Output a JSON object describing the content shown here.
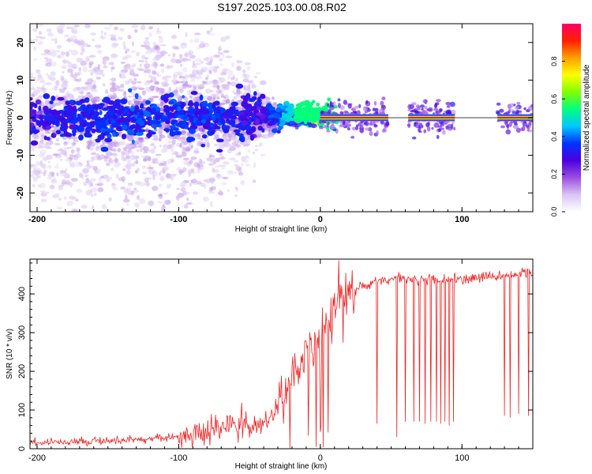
{
  "figure": {
    "title": "S197.2025.103.00.08.R02"
  },
  "chart_data": [
    {
      "type": "heatmap",
      "name": "spectrogram",
      "xlabel": "Height of straight line (km)",
      "ylabel": "Frequency (Hz)",
      "xlim": [
        -205,
        150
      ],
      "ylim": [
        -25,
        25
      ],
      "x_ticks": [
        -200,
        -100,
        0,
        100
      ],
      "y_ticks": [
        -20,
        -10,
        0,
        10,
        20
      ],
      "colorbar": {
        "label": "Normalized spectral amplitude",
        "range": [
          0,
          1
        ],
        "ticks": [
          0.0,
          0.2,
          0.4,
          0.6,
          0.8
        ],
        "tick_labels": [
          "0.0",
          "0.2",
          "0.4",
          "0.6",
          "0.8"
        ],
        "colors": [
          "#ffffff",
          "#d9c4f2",
          "#9b4de0",
          "#4b00e0",
          "#0033ff",
          "#00c8ff",
          "#00ff80",
          "#80ff00",
          "#ffff00",
          "#ffa000",
          "#ff2000",
          "#ff0066"
        ]
      },
      "carrier": {
        "frequency_hz": 0,
        "x_start": 0,
        "x_end": 150,
        "peak_amplitude": 0.95
      },
      "scatter_envelope": {
        "x": [
          -205,
          -160,
          -120,
          -80,
          -60,
          -40,
          -30,
          -20,
          -10,
          0
        ],
        "spread_hz": [
          25,
          25,
          25,
          22,
          15,
          6,
          3,
          2,
          1.5,
          1
        ],
        "intensity": [
          0.25,
          0.3,
          0.32,
          0.3,
          0.28,
          0.25,
          0.35,
          0.5,
          0.7,
          0.9
        ]
      },
      "gaps_x": [
        [
          48,
          62
        ],
        [
          95,
          125
        ]
      ]
    },
    {
      "type": "line",
      "name": "snr",
      "xlabel": "Height of straight line (km)",
      "ylabel": "SNR (10 * v/v)",
      "xlim": [
        -205,
        150
      ],
      "ylim": [
        0,
        490
      ],
      "x_ticks": [
        -200,
        -100,
        0,
        100
      ],
      "y_ticks": [
        0,
        100,
        200,
        300,
        400
      ],
      "line_color": "#ee2222",
      "envelope": {
        "x": [
          -205,
          -150,
          -120,
          -100,
          -80,
          -60,
          -45,
          -35,
          -25,
          -15,
          -5,
          5,
          15,
          25,
          35,
          50,
          80,
          100,
          130,
          150
        ],
        "y": [
          15,
          20,
          25,
          30,
          45,
          60,
          60,
          80,
          150,
          220,
          270,
          330,
          380,
          410,
          430,
          440,
          440,
          440,
          445,
          455
        ]
      },
      "dropouts": [
        {
          "x": 40,
          "y": 65
        },
        {
          "x": 54,
          "y": 30
        },
        {
          "x": 60,
          "y": 70
        },
        {
          "x": 66,
          "y": 70
        },
        {
          "x": 70,
          "y": 70
        },
        {
          "x": 74,
          "y": 65
        },
        {
          "x": 78,
          "y": 70
        },
        {
          "x": 82,
          "y": 70
        },
        {
          "x": 85,
          "y": 65
        },
        {
          "x": 88,
          "y": 70
        },
        {
          "x": 91,
          "y": 60
        },
        {
          "x": 94,
          "y": 70
        },
        {
          "x": 130,
          "y": 85
        },
        {
          "x": 134,
          "y": 80
        },
        {
          "x": 140,
          "y": 90
        },
        {
          "x": 147,
          "y": 85
        }
      ]
    }
  ]
}
